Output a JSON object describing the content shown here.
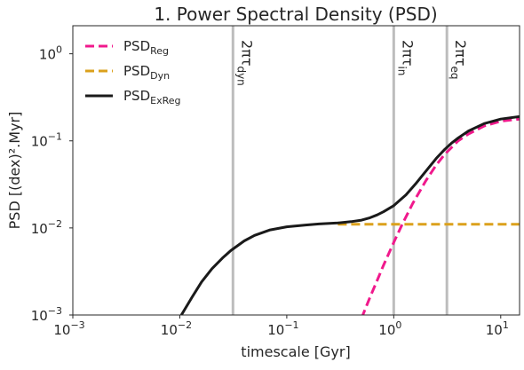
{
  "chart_data": {
    "type": "line",
    "title": "1. Power Spectral Density (PSD)",
    "xlabel": "timescale [Gyr]",
    "ylabel": "PSD [(dex)².Myr]",
    "xscale": "log",
    "yscale": "log",
    "xlim": [
      0.001,
      15
    ],
    "ylim": [
      0.001,
      2.1
    ],
    "grid": false,
    "legend_position": "top-left",
    "xticks": [
      {
        "value": 0.001,
        "base": "10",
        "exp": "−3"
      },
      {
        "value": 0.01,
        "base": "10",
        "exp": "−2"
      },
      {
        "value": 0.1,
        "base": "10",
        "exp": "−1"
      },
      {
        "value": 1,
        "base": "10",
        "exp": "0"
      },
      {
        "value": 10,
        "base": "10",
        "exp": "1"
      }
    ],
    "yticks": [
      {
        "value": 0.001,
        "base": "10",
        "exp": "−3"
      },
      {
        "value": 0.01,
        "base": "10",
        "exp": "−2"
      },
      {
        "value": 0.1,
        "base": "10",
        "exp": "−1"
      },
      {
        "value": 1,
        "base": "10",
        "exp": "0"
      }
    ],
    "vlines": [
      {
        "x": 0.0314,
        "label_main": "2πτ",
        "label_sub": "dyn",
        "color": "#bdbdbd"
      },
      {
        "x": 1.0,
        "label_main": "2πτ",
        "label_sub": "in",
        "color": "#bdbdbd"
      },
      {
        "x": 3.14,
        "label_main": "2πτ",
        "label_sub": "eq",
        "color": "#bdbdbd"
      }
    ],
    "series": [
      {
        "name": "PSD",
        "name_sub": "Reg",
        "color": "#f0198c",
        "dash": "10,5",
        "x": [
          0.5,
          0.6,
          0.7,
          0.8,
          0.9,
          1.0,
          1.2,
          1.5,
          2.0,
          2.5,
          3.0,
          4.0,
          5.0,
          7.0,
          10.0,
          15.0
        ],
        "y": [
          0.00092,
          0.0016,
          0.0025,
          0.0037,
          0.0051,
          0.0068,
          0.011,
          0.019,
          0.035,
          0.053,
          0.07,
          0.1,
          0.12,
          0.148,
          0.168,
          0.178
        ]
      },
      {
        "name": "PSD",
        "name_sub": "Dyn",
        "color": "#dba11c",
        "dash": "10,5",
        "x": [
          0.3,
          0.5,
          1.0,
          2.0,
          5.0,
          10.0,
          15.0
        ],
        "y": [
          0.011,
          0.011,
          0.011,
          0.011,
          0.011,
          0.011,
          0.011
        ]
      },
      {
        "name": "PSD",
        "name_sub": "ExReg",
        "color": "#1a1a1a",
        "dash": "",
        "x": [
          0.01,
          0.013,
          0.016,
          0.02,
          0.025,
          0.03,
          0.04,
          0.05,
          0.07,
          0.1,
          0.15,
          0.2,
          0.3,
          0.4,
          0.5,
          0.6,
          0.7,
          0.8,
          1.0,
          1.3,
          1.6,
          2.0,
          2.5,
          3.0,
          3.5,
          4.0,
          5.0,
          7.0,
          10.0,
          15.0
        ],
        "y": [
          0.00093,
          0.0016,
          0.0024,
          0.0034,
          0.0045,
          0.0055,
          0.0071,
          0.0082,
          0.0095,
          0.0103,
          0.0108,
          0.0111,
          0.0114,
          0.0118,
          0.0123,
          0.0131,
          0.0141,
          0.0153,
          0.018,
          0.024,
          0.032,
          0.045,
          0.063,
          0.08,
          0.095,
          0.108,
          0.13,
          0.158,
          0.178,
          0.19
        ]
      }
    ]
  }
}
